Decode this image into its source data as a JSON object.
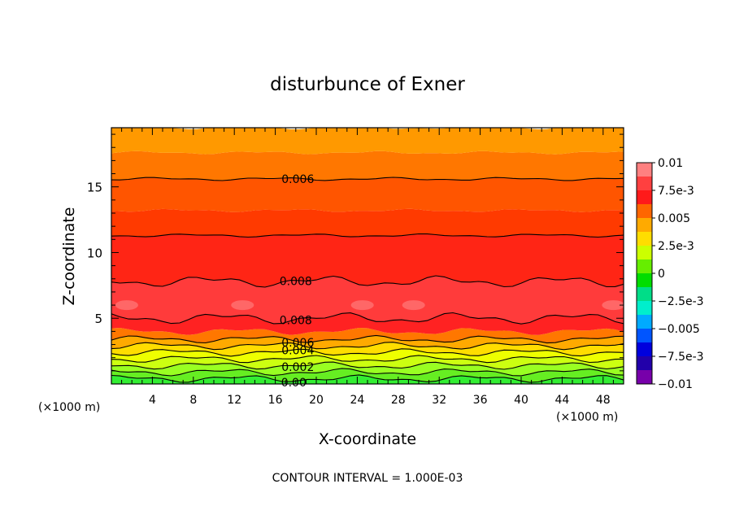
{
  "chart_data": {
    "type": "heatmap",
    "title": "disturbunce of Exner",
    "xlabel": "X-coordinate",
    "ylabel": "Z-coordinate",
    "x_unit": "(×1000 m)",
    "x_unit_right": "(×1000 m)",
    "xlim": [
      0,
      50
    ],
    "ylim": [
      0,
      19.5
    ],
    "xticks": [
      "4",
      "8",
      "12",
      "16",
      "20",
      "24",
      "28",
      "32",
      "36",
      "40",
      "44",
      "48"
    ],
    "yticks": [
      "5",
      "10",
      "15"
    ],
    "footer": "CONTOUR INTERVAL = 1.000E-03",
    "colorbar": {
      "range": [
        -0.01,
        0.01
      ],
      "labels": [
        "0.01",
        "7.5e-3",
        "0.005",
        "2.5e-3",
        "0",
        "-2.5e-3",
        "-0.005",
        "-7.5e-3",
        "-0.01"
      ],
      "colors": [
        "#ff8080",
        "#ff4040",
        "#ff1a1a",
        "#ff6600",
        "#ffaa00",
        "#ffdd00",
        "#ccff00",
        "#66ee00",
        "#00dd00",
        "#00dd88",
        "#00eecc",
        "#00aaff",
        "#0055ff",
        "#0000dd",
        "#2200aa",
        "#7700aa"
      ]
    },
    "bands": [
      {
        "z": [
          0.0,
          0.4
        ],
        "color": "#33ee33"
      },
      {
        "z": [
          0.4,
          0.9
        ],
        "color": "#66ee22"
      },
      {
        "z": [
          0.9,
          1.4
        ],
        "color": "#99ff22"
      },
      {
        "z": [
          1.4,
          1.9
        ],
        "color": "#ccff11"
      },
      {
        "z": [
          1.9,
          2.4
        ],
        "color": "#eeff00"
      },
      {
        "z": [
          2.4,
          2.9
        ],
        "color": "#ffdd00"
      },
      {
        "z": [
          2.9,
          3.4
        ],
        "color": "#ffaa00"
      },
      {
        "z": [
          3.4,
          4.0
        ],
        "color": "#ff7700"
      },
      {
        "z": [
          4.0,
          5.0
        ],
        "color": "#ff2222"
      },
      {
        "z": [
          5.0,
          7.8
        ],
        "color": "#ff3b3b"
      },
      {
        "z": [
          7.8,
          11.3
        ],
        "color": "#ff2515"
      },
      {
        "z": [
          11.3,
          13.2
        ],
        "color": "#ff3a00"
      },
      {
        "z": [
          13.2,
          15.6
        ],
        "color": "#ff5500"
      },
      {
        "z": [
          15.6,
          17.6
        ],
        "color": "#ff7700"
      },
      {
        "z": [
          17.6,
          19.5
        ],
        "color": "#ff9900"
      }
    ],
    "contours": [
      {
        "label": "0.006",
        "z": 15.6,
        "label_x": 18.2
      },
      {
        "label": "",
        "z": 11.3
      },
      {
        "label": "0.008",
        "z": 7.8,
        "label_x": 18.0
      },
      {
        "label": "0.008",
        "z": 5.0,
        "label_x": 18.0
      },
      {
        "label": "0.006",
        "z": 3.4,
        "label_x": 18.2
      },
      {
        "label": "",
        "z": 2.9
      },
      {
        "label": "0.004",
        "z": 2.4,
        "label_x": 18.2
      },
      {
        "label": "",
        "z": 1.9
      },
      {
        "label": "0.002",
        "z": 1.4,
        "label_x": 18.2
      },
      {
        "label": "",
        "z": 0.9
      },
      {
        "label": "0.00",
        "z": 0.4,
        "label_x": 17.8
      }
    ],
    "highlights": [
      {
        "x": 1.5,
        "z": 6.0
      },
      {
        "x": 12.8,
        "z": 6.0
      },
      {
        "x": 24.5,
        "z": 6.0
      },
      {
        "x": 29.5,
        "z": 6.0
      },
      {
        "x": 49.0,
        "z": 6.0
      }
    ]
  }
}
